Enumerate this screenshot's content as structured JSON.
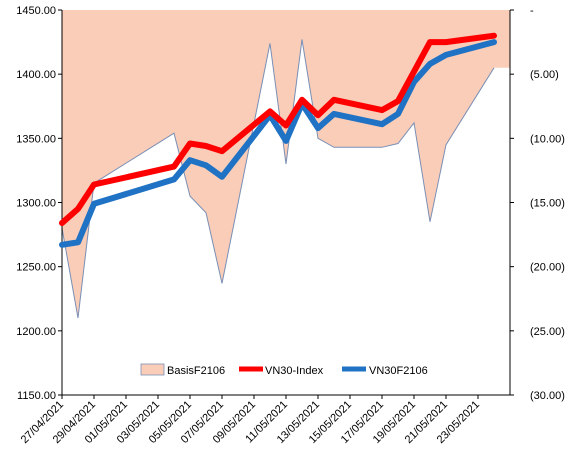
{
  "chart_data": {
    "type": "line",
    "title": "",
    "x_labels": [
      "27/04/2021",
      "29/04/2021",
      "01/05/2021",
      "03/05/2021",
      "05/05/2021",
      "07/05/2021",
      "09/05/2021",
      "11/05/2021",
      "13/05/2021",
      "15/05/2021",
      "17/05/2021",
      "19/05/2021",
      "21/05/2021",
      "23/05/2021"
    ],
    "x_start": "2021-04-27",
    "x_end": "2021-05-25",
    "primary_axis": {
      "min": 1150,
      "max": 1450,
      "step": 50,
      "tick_labels": [
        "1150.00",
        "1200.00",
        "1250.00",
        "1300.00",
        "1350.00",
        "1400.00",
        "1450.00"
      ]
    },
    "secondary_axis": {
      "min": -30,
      "max": 0,
      "step": 5,
      "tick_labels": [
        "(30.00)",
        "(25.00)",
        "(20.00)",
        "(15.00)",
        "(10.00)",
        "(5.00)",
        "-"
      ]
    },
    "series": [
      {
        "name": "BasisF2106",
        "type": "area",
        "axis": "secondary",
        "color": "#F9CDB8",
        "stroke": "#7A8FB5",
        "points": [
          [
            "2021-04-27",
            -17.0
          ],
          [
            "2021-04-28",
            -24.0
          ],
          [
            "2021-04-29",
            -13.5
          ],
          [
            "2021-05-04",
            -9.6
          ],
          [
            "2021-05-05",
            -14.5
          ],
          [
            "2021-05-06",
            -15.8
          ],
          [
            "2021-05-07",
            -21.3
          ],
          [
            "2021-05-10",
            -2.6
          ],
          [
            "2021-05-11",
            -12.0
          ],
          [
            "2021-05-12",
            -2.3
          ],
          [
            "2021-05-13",
            -10.0
          ],
          [
            "2021-05-14",
            -10.7
          ],
          [
            "2021-05-17",
            -10.7
          ],
          [
            "2021-05-18",
            -10.4
          ],
          [
            "2021-05-19",
            -8.8
          ],
          [
            "2021-05-20",
            -16.5
          ],
          [
            "2021-05-21",
            -10.5
          ],
          [
            "2021-05-24",
            -4.5
          ]
        ]
      },
      {
        "name": "VN30-Index",
        "type": "line",
        "axis": "primary",
        "color": "#FF0000",
        "points": [
          [
            "2021-04-27",
            1284
          ],
          [
            "2021-04-28",
            1295
          ],
          [
            "2021-04-29",
            1314
          ],
          [
            "2021-05-04",
            1328
          ],
          [
            "2021-05-05",
            1346
          ],
          [
            "2021-05-06",
            1344
          ],
          [
            "2021-05-07",
            1340
          ],
          [
            "2021-05-10",
            1371
          ],
          [
            "2021-05-11",
            1360
          ],
          [
            "2021-05-12",
            1380
          ],
          [
            "2021-05-13",
            1368
          ],
          [
            "2021-05-14",
            1380
          ],
          [
            "2021-05-17",
            1372
          ],
          [
            "2021-05-18",
            1379
          ],
          [
            "2021-05-19",
            1402
          ],
          [
            "2021-05-20",
            1425
          ],
          [
            "2021-05-21",
            1425
          ],
          [
            "2021-05-24",
            1430
          ]
        ]
      },
      {
        "name": "VN30F2106",
        "type": "line",
        "axis": "primary",
        "color": "#1F72C4",
        "points": [
          [
            "2021-04-27",
            1267
          ],
          [
            "2021-04-28",
            1269
          ],
          [
            "2021-04-29",
            1299
          ],
          [
            "2021-05-04",
            1318
          ],
          [
            "2021-05-05",
            1333
          ],
          [
            "2021-05-06",
            1329
          ],
          [
            "2021-05-07",
            1320
          ],
          [
            "2021-05-10",
            1368
          ],
          [
            "2021-05-11",
            1348
          ],
          [
            "2021-05-12",
            1377
          ],
          [
            "2021-05-13",
            1358
          ],
          [
            "2021-05-14",
            1369
          ],
          [
            "2021-05-17",
            1361
          ],
          [
            "2021-05-18",
            1369
          ],
          [
            "2021-05-19",
            1394
          ],
          [
            "2021-05-20",
            1408
          ],
          [
            "2021-05-21",
            1415
          ],
          [
            "2021-05-24",
            1425
          ]
        ]
      }
    ],
    "legend": {
      "position": "bottom-inside"
    },
    "grid": false
  }
}
